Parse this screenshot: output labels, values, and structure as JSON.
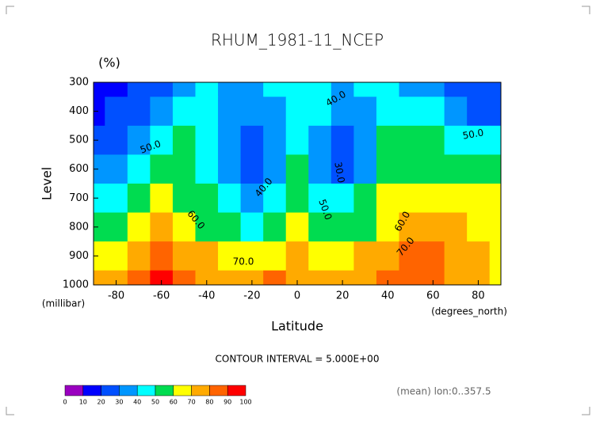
{
  "chart_data": {
    "type": "contour",
    "title": "RHUM_1981-11_NCEP",
    "units": "(%)",
    "y_label": "Level",
    "y_unit": "(millibar)",
    "x_label": "Latitude",
    "x_unit": "(degrees_north)",
    "note": "CONTOUR INTERVAL = 5.000E+00",
    "footer": "(mean) lon:0..357.5",
    "x": [
      -90,
      -80,
      -70,
      -60,
      -50,
      -40,
      -30,
      -20,
      -10,
      0,
      10,
      20,
      30,
      40,
      50,
      60,
      70,
      80,
      90
    ],
    "y": [
      300,
      400,
      500,
      600,
      700,
      800,
      900,
      1000
    ],
    "z": [
      [
        10,
        18,
        22,
        28,
        35,
        42,
        38,
        35,
        40,
        45,
        42,
        38,
        42,
        45,
        38,
        30,
        25,
        22,
        20
      ],
      [
        15,
        20,
        28,
        35,
        40,
        45,
        38,
        32,
        38,
        45,
        40,
        30,
        38,
        48,
        48,
        40,
        30,
        28,
        25
      ],
      [
        20,
        25,
        35,
        45,
        50,
        45,
        35,
        25,
        35,
        45,
        35,
        25,
        35,
        52,
        55,
        50,
        48,
        45,
        42
      ],
      [
        30,
        35,
        40,
        50,
        55,
        45,
        35,
        28,
        38,
        50,
        38,
        25,
        38,
        55,
        58,
        55,
        55,
        55,
        55
      ],
      [
        40,
        40,
        55,
        60,
        58,
        50,
        40,
        38,
        48,
        55,
        45,
        40,
        50,
        60,
        65,
        68,
        62,
        60,
        60
      ],
      [
        55,
        55,
        65,
        70,
        65,
        58,
        50,
        48,
        55,
        60,
        55,
        50,
        58,
        68,
        72,
        72,
        70,
        65,
        62
      ],
      [
        65,
        65,
        75,
        82,
        75,
        70,
        65,
        62,
        68,
        70,
        68,
        65,
        70,
        78,
        82,
        80,
        75,
        70,
        65
      ],
      [
        70,
        70,
        80,
        90,
        85,
        78,
        75,
        72,
        80,
        78,
        75,
        75,
        75,
        85,
        88,
        85,
        78,
        72,
        68
      ]
    ],
    "xlim": [
      -90,
      90
    ],
    "xticks": [
      -80,
      -60,
      -40,
      -20,
      0,
      20,
      40,
      60,
      80
    ],
    "ylim": [
      1000,
      300
    ],
    "yticks": [
      300,
      400,
      500,
      600,
      700,
      800,
      900,
      1000
    ],
    "levels": [
      0,
      10,
      20,
      30,
      40,
      50,
      60,
      70,
      80,
      90,
      100
    ],
    "colors": [
      "#9a00c0",
      "#0000ff",
      "#0050ff",
      "#0096ff",
      "#00ffff",
      "#00dc50",
      "#ffff00",
      "#ffaa00",
      "#ff6400",
      "#ff0000"
    ],
    "contour_labels": [
      "40.0",
      "50.0",
      "50.0",
      "40.0",
      "30.0",
      "50.0",
      "60.0",
      "60.0",
      "70.0",
      "70.0"
    ]
  }
}
